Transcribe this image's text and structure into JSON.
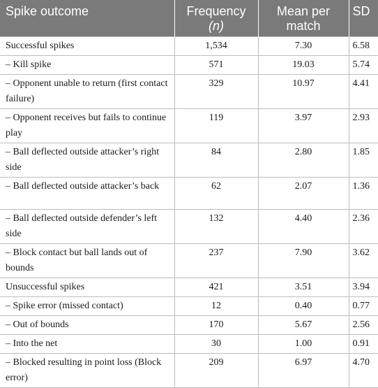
{
  "table": {
    "headers": {
      "outcome": "Spike outcome",
      "frequency": "Frequency",
      "frequency_n": "(n)",
      "mean": "Mean per match",
      "sd": "SD"
    },
    "rows": [
      {
        "outcome": "Successful spikes",
        "frequency": "1,534",
        "mean": "7.30",
        "sd": "6.58"
      },
      {
        "outcome": "– Kill spike",
        "frequency": "571",
        "mean": "19.03",
        "sd": "5.74"
      },
      {
        "outcome": "– Opponent unable to return (first contact failure)",
        "frequency": "329",
        "mean": "10.97",
        "sd": "4.41"
      },
      {
        "outcome": "– Opponent receives but fails to continue play",
        "frequency": "119",
        "mean": "3.97",
        "sd": "2.93"
      },
      {
        "outcome": "– Ball deflected outside attacker’s right side",
        "frequency": "84",
        "mean": "2.80",
        "sd": "1.85"
      },
      {
        "outcome": "– Ball deflected outside attacker’s back",
        "frequency": "62",
        "mean": "2.07",
        "sd": "1.36"
      },
      {
        "outcome": "– Ball deflected outside defender’s left side",
        "frequency": "132",
        "mean": "4.40",
        "sd": "2.36"
      },
      {
        "outcome": "– Block contact but ball lands out of bounds",
        "frequency": "237",
        "mean": "7.90",
        "sd": "3.62"
      },
      {
        "outcome": "Unsuccessful spikes",
        "frequency": "421",
        "mean": "3.51",
        "sd": "3.94"
      },
      {
        "outcome": "– Spike error (missed contact)",
        "frequency": "12",
        "mean": "0.40",
        "sd": "0.77"
      },
      {
        "outcome": "– Out of bounds",
        "frequency": "170",
        "mean": "5.67",
        "sd": "2.56"
      },
      {
        "outcome": "– Into the net",
        "frequency": "30",
        "mean": "1.00",
        "sd": "0.91"
      },
      {
        "outcome": "– Blocked resulting in point loss (Block error)",
        "frequency": "209",
        "mean": "6.97",
        "sd": "4.70"
      }
    ]
  }
}
